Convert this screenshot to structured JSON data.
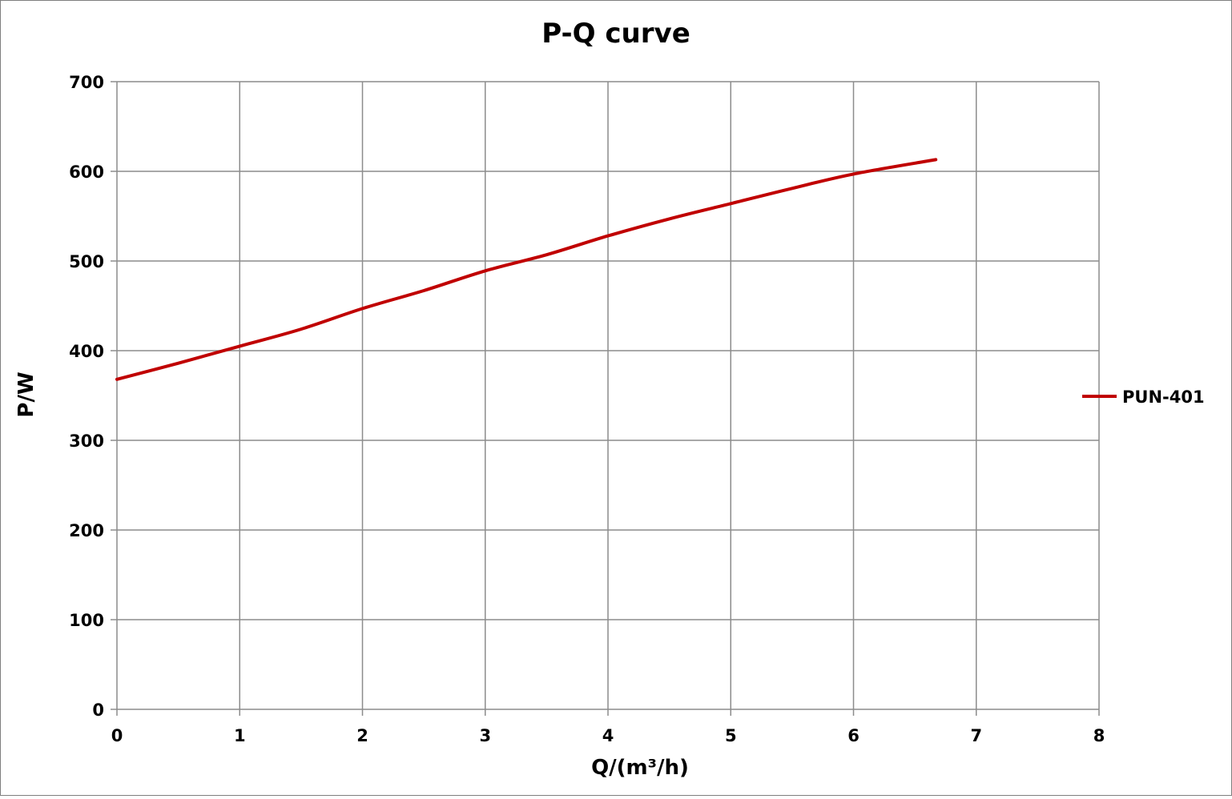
{
  "chart_data": {
    "type": "line",
    "title": "P-Q  curve",
    "xlabel": "Q/(m³/h)",
    "ylabel": "P/W",
    "xlim": [
      0,
      8
    ],
    "ylim": [
      0,
      700
    ],
    "x_ticks": [
      "0",
      "1",
      "2",
      "3",
      "4",
      "5",
      "6",
      "7",
      "8"
    ],
    "y_ticks": [
      "0",
      "100",
      "200",
      "300",
      "400",
      "500",
      "600",
      "700"
    ],
    "grid": true,
    "legend_position": "right",
    "series": [
      {
        "name": "PUN-401",
        "color": "#c00000",
        "x": [
          0,
          0.5,
          1,
          1.5,
          2,
          2.5,
          3,
          3.5,
          4,
          4.5,
          5,
          5.5,
          6,
          6.67
        ],
        "y": [
          368,
          386,
          405,
          424,
          447,
          467,
          489,
          507,
          528,
          547,
          564,
          581,
          597,
          613
        ]
      }
    ]
  }
}
